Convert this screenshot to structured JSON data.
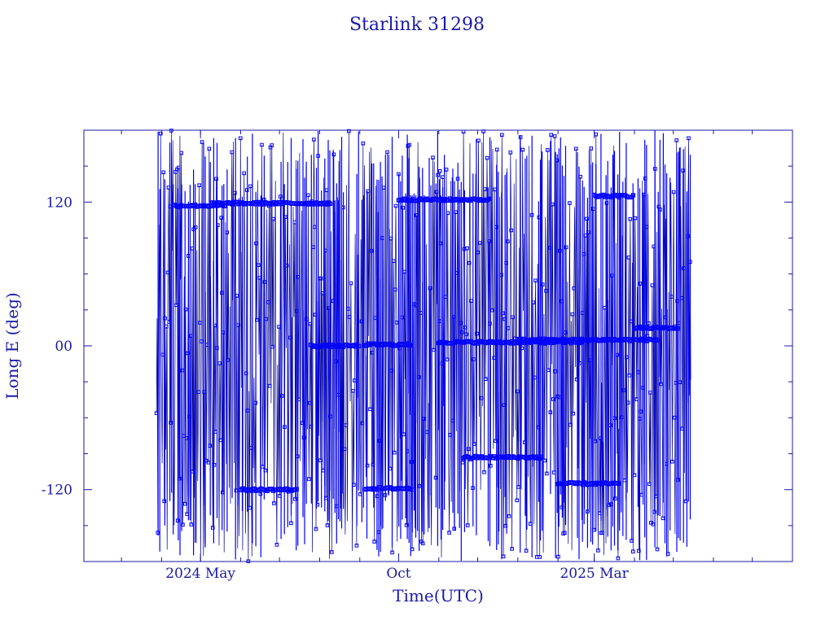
{
  "chart_data": {
    "type": "scatter",
    "title": "Starlink 31298",
    "xlabel": "Time(UTC)",
    "ylabel": "Long E (deg)",
    "x_tick_labels": [
      "2024 May",
      "Oct",
      "2025 Mar"
    ],
    "x_tick_dates": [
      "2024-05-01",
      "2024-10-01",
      "2025-03-01"
    ],
    "xlim": [
      "2024-02-01",
      "2025-08-01"
    ],
    "data_range": [
      "2024-03-28",
      "2025-05-15"
    ],
    "y_ticks": [
      120,
      0,
      -120
    ],
    "y_tick_labels": [
      "120",
      "00",
      "-120"
    ],
    "ylim": [
      -180,
      180
    ],
    "grid": false,
    "legend": "none",
    "point_style": "open-square",
    "line_color": "#00008b",
    "marker_color": "#0000ff",
    "station_tracks": [
      {
        "from": "2024-04-10",
        "to": "2024-05-20",
        "lon": 117
      },
      {
        "from": "2024-05-10",
        "to": "2024-08-10",
        "lon": 119
      },
      {
        "from": "2024-06-01",
        "to": "2024-07-15",
        "lon": -120
      },
      {
        "from": "2024-07-25",
        "to": "2024-09-01",
        "lon": 0
      },
      {
        "from": "2024-09-05",
        "to": "2024-10-10",
        "lon": 1
      },
      {
        "from": "2024-09-05",
        "to": "2024-10-10",
        "lon": -119
      },
      {
        "from": "2024-10-01",
        "to": "2024-12-10",
        "lon": 122
      },
      {
        "from": "2024-11-01",
        "to": "2025-02-20",
        "lon": 3
      },
      {
        "from": "2024-11-20",
        "to": "2025-01-20",
        "lon": -93
      },
      {
        "from": "2025-01-01",
        "to": "2025-04-20",
        "lon": 5
      },
      {
        "from": "2025-02-01",
        "to": "2025-03-20",
        "lon": -115
      },
      {
        "from": "2025-03-01",
        "to": "2025-04-01",
        "lon": 125
      },
      {
        "from": "2025-04-01",
        "to": "2025-05-05",
        "lon": 15
      }
    ]
  }
}
